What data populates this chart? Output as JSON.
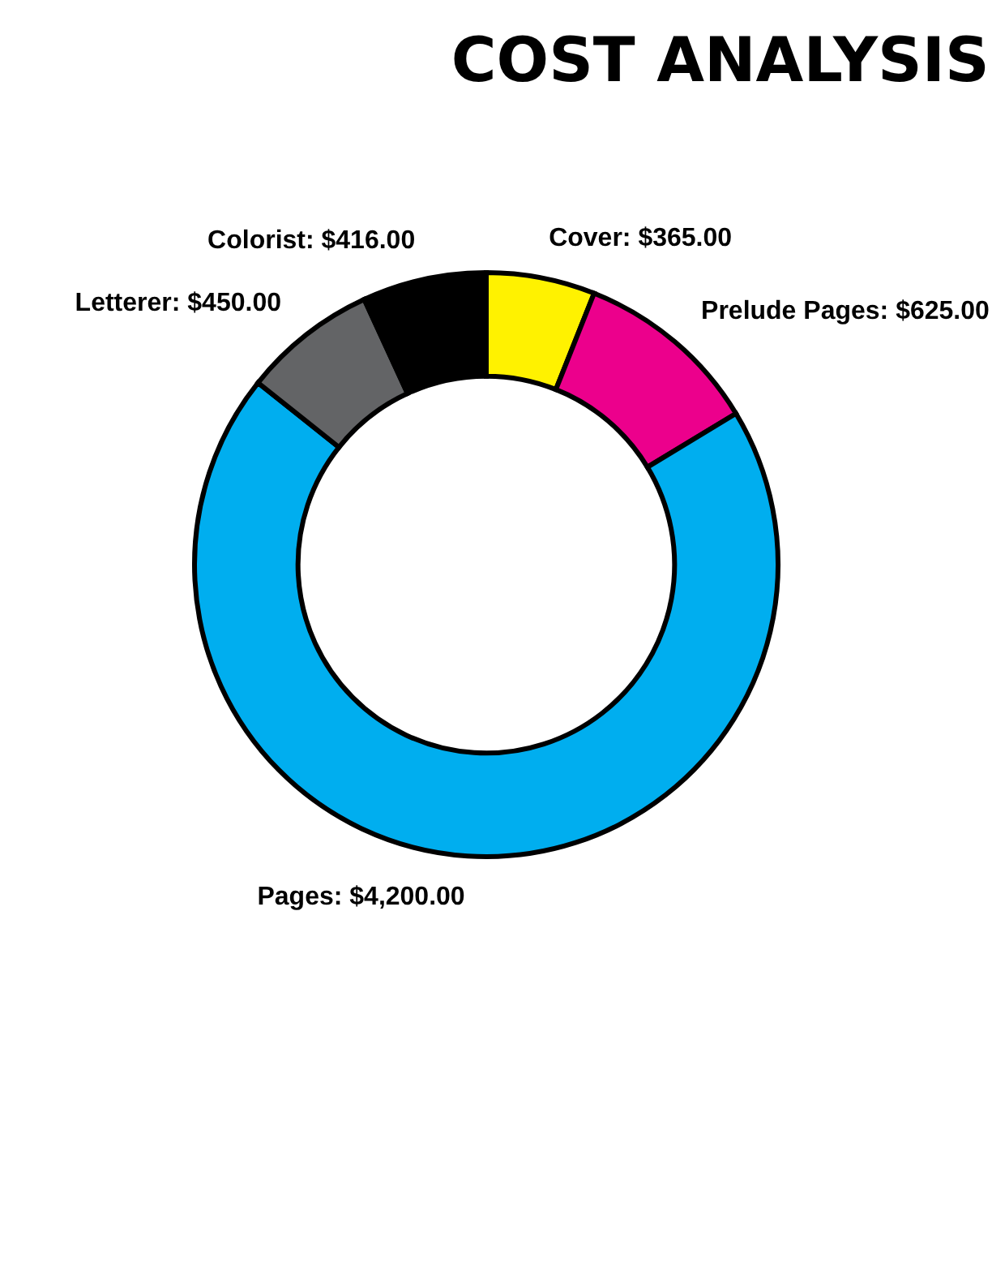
{
  "chart_data": {
    "type": "donut",
    "title": "COST ANALYSIS",
    "categories": [
      "Cover",
      "Prelude Pages",
      "Pages",
      "Letterer",
      "Colorist"
    ],
    "values": [
      365,
      625,
      4200,
      450,
      416
    ],
    "value_labels": [
      "$365.00",
      "$625.00",
      "$4,200.00",
      "$450.00",
      "$416.00"
    ],
    "colors": [
      "#fff200",
      "#ec008c",
      "#00aeef",
      "#636466",
      "#000000"
    ],
    "legend": false
  }
}
